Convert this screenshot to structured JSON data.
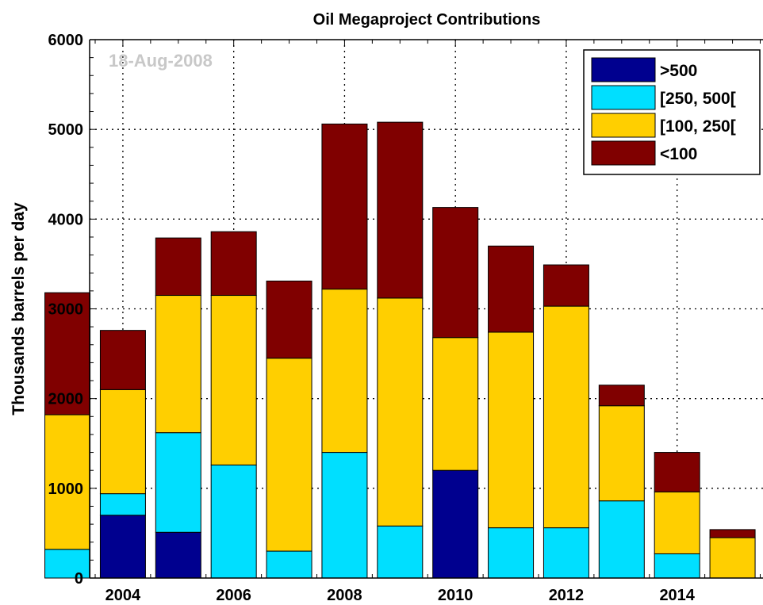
{
  "chart_data": {
    "type": "bar",
    "stacked": true,
    "title": "Oil Megaproject Contributions",
    "ylabel": "Thousands barrels per day",
    "xlabel": "",
    "annotation": "18-Aug-2008",
    "ylim": [
      0,
      6000
    ],
    "xlim": [
      2003.4,
      2015.55
    ],
    "y_ticks": [
      0,
      1000,
      2000,
      3000,
      4000,
      5000,
      6000
    ],
    "x_ticks": [
      2004,
      2006,
      2008,
      2010,
      2012,
      2014
    ],
    "grid": true,
    "legend_position": "top-right",
    "categories": [
      2003,
      2004,
      2005,
      2006,
      2007,
      2008,
      2009,
      2010,
      2011,
      2012,
      2013,
      2014,
      2015
    ],
    "series": [
      {
        "name": ">500",
        "color": "#00008f",
        "values": [
          0,
          700,
          510,
          0,
          0,
          0,
          0,
          1200,
          0,
          0,
          0,
          0,
          0
        ]
      },
      {
        "name": "[250, 500[",
        "color": "#00dfff",
        "values": [
          320,
          240,
          1110,
          1260,
          300,
          1400,
          580,
          0,
          560,
          560,
          860,
          270,
          0
        ]
      },
      {
        "name": "[100, 250[",
        "color": "#ffcf00",
        "values": [
          1500,
          1160,
          1530,
          1890,
          2150,
          1820,
          2540,
          1480,
          2180,
          2470,
          1060,
          690,
          450
        ]
      },
      {
        "name": "<100",
        "color": "#800000",
        "values": [
          1360,
          660,
          640,
          710,
          860,
          1840,
          1960,
          1450,
          960,
          460,
          230,
          440,
          90
        ]
      }
    ]
  }
}
